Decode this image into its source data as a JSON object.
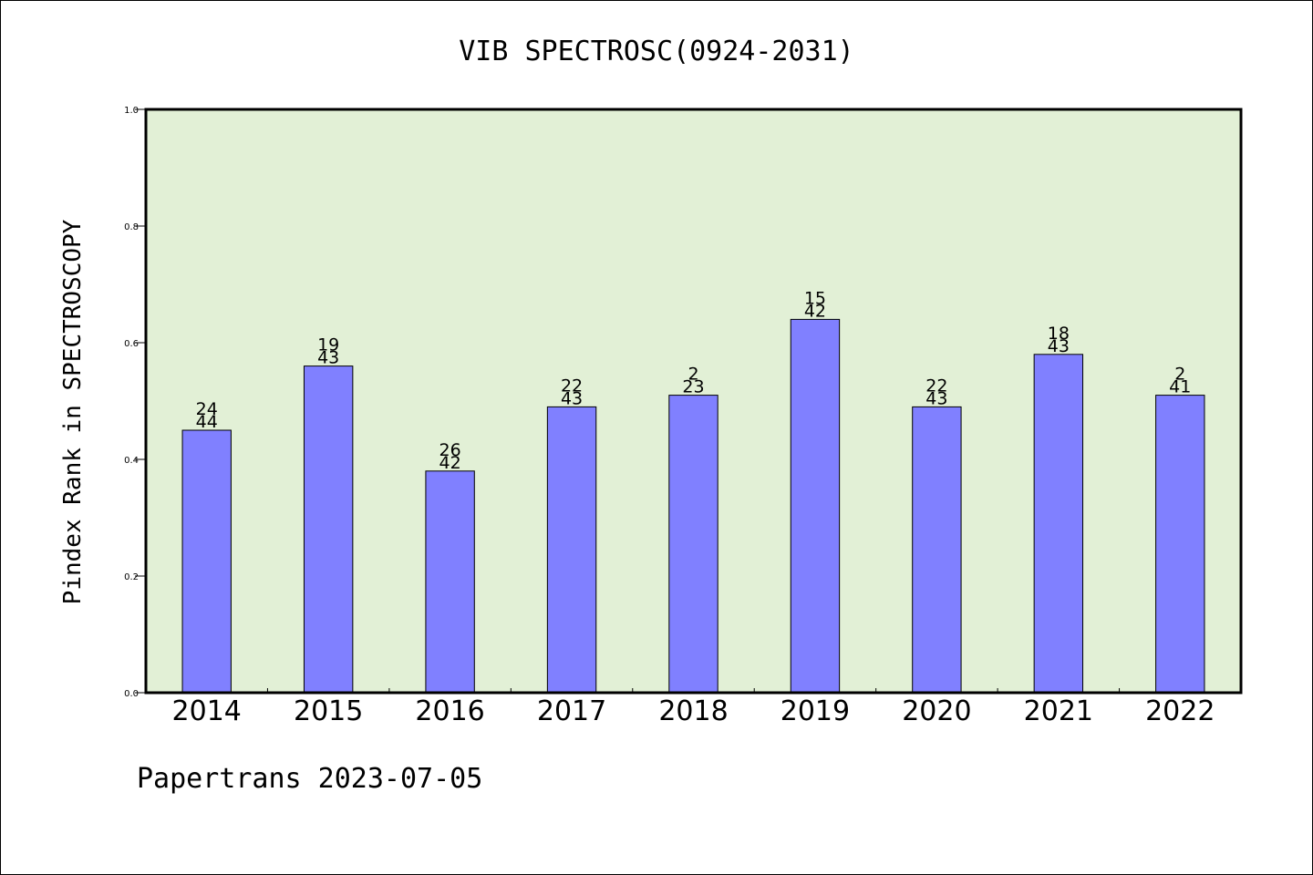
{
  "chart_data": {
    "type": "bar",
    "title": "VIB SPECTROSC(0924-2031)",
    "ylabel": "Pindex Rank in SPECTROSCOPY",
    "xlabel": "",
    "ylim": [
      0,
      1.0
    ],
    "yticks": [
      "0.0",
      "0.2",
      "0.4",
      "0.6",
      "0.8",
      "1.0"
    ],
    "grid": false,
    "categories": [
      "2014",
      "2015",
      "2016",
      "2017",
      "2018",
      "2019",
      "2020",
      "2021",
      "2022"
    ],
    "values": [
      0.45,
      0.56,
      0.38,
      0.49,
      0.51,
      0.64,
      0.49,
      0.58,
      0.51
    ],
    "bar_labels": [
      {
        "top": "24",
        "bottom": "44"
      },
      {
        "top": "19",
        "bottom": "43"
      },
      {
        "top": "26",
        "bottom": "42"
      },
      {
        "top": "22",
        "bottom": "43"
      },
      {
        "top": "2",
        "bottom": "23"
      },
      {
        "top": "15",
        "bottom": "42"
      },
      {
        "top": "22",
        "bottom": "43"
      },
      {
        "top": "18",
        "bottom": "43"
      },
      {
        "top": "2",
        "bottom": "41"
      }
    ],
    "colors": {
      "plot_background": "#e2f0d6",
      "bar_fill": "#8080ff",
      "bar_stroke": "#000000"
    }
  },
  "footer": {
    "text": "Papertrans 2023-07-05"
  }
}
